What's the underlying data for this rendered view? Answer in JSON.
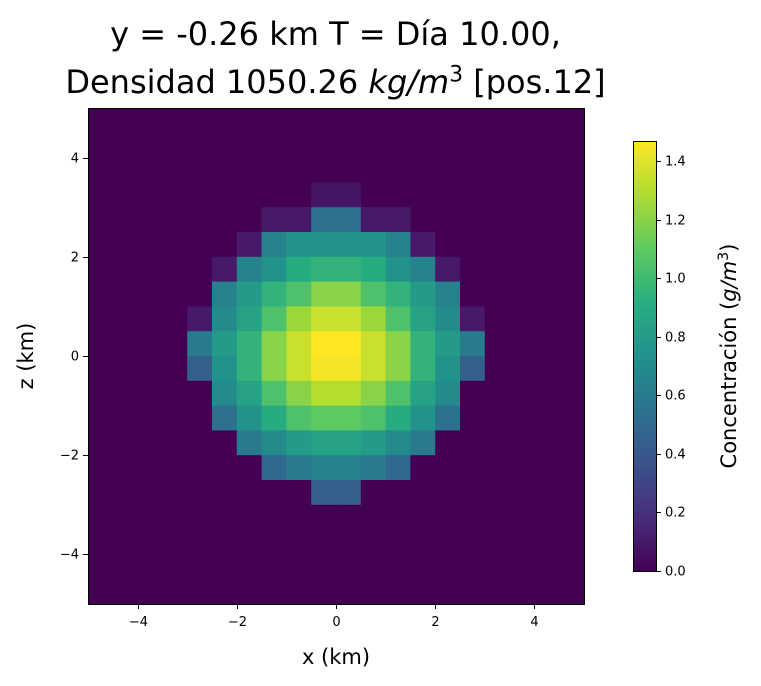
{
  "chart_data": {
    "type": "heatmap",
    "title": "y = -0.26 km  T = Día 10.00,",
    "title_line2": "Densidad 1050.26 ",
    "title_line2_unit": "kg/m",
    "title_line2_exp": "3",
    "title_line2_suffix": " [pos.12]",
    "xlabel": "x (km)",
    "ylabel": "z (km)",
    "colorbar_label": "Concentración (",
    "colorbar_unit": "g/m",
    "colorbar_exp": "3",
    "colorbar_close": ")",
    "colormap": "viridis",
    "xlim": [
      -5,
      5
    ],
    "ylim": [
      -5,
      5
    ],
    "vmin": 0.0,
    "vmax": 1.47,
    "x_ticks": [
      -4,
      -2,
      0,
      2,
      4
    ],
    "x_tick_labels": [
      "−4",
      "−2",
      "0",
      "2",
      "4"
    ],
    "y_ticks": [
      4,
      2,
      0,
      -2,
      -4
    ],
    "y_tick_labels": [
      "4",
      "2",
      "0",
      "−2",
      "−4"
    ],
    "colorbar_ticks": [
      1.4,
      1.2,
      1.0,
      0.8,
      0.6,
      0.4,
      0.2,
      0.0
    ],
    "colorbar_tick_labels": [
      "1.4",
      "1.2",
      "1.0",
      "0.8",
      "0.6",
      "0.4",
      "0.2",
      "0.0"
    ],
    "grid": false,
    "cell_size_km": 0.5,
    "z_rows_top_to_bottom": [
      4.75,
      4.25,
      3.75,
      3.25,
      2.75,
      2.25,
      1.75,
      1.25,
      0.75,
      0.25,
      -0.25,
      -0.75,
      -1.25,
      -1.75,
      -2.25,
      -2.75,
      -3.25,
      -3.75,
      -4.25,
      -4.75
    ],
    "x_columns": [
      -4.75,
      -4.25,
      -3.75,
      -3.25,
      -2.75,
      -2.25,
      -1.75,
      -1.25,
      -0.75,
      -0.25,
      0.25,
      0.75,
      1.25,
      1.75,
      2.25,
      2.75,
      3.25,
      3.75,
      4.25,
      4.75
    ],
    "values": [
      [
        0,
        0,
        0,
        0,
        0,
        0,
        0,
        0,
        0,
        0,
        0,
        0,
        0,
        0,
        0,
        0,
        0,
        0,
        0,
        0
      ],
      [
        0,
        0,
        0,
        0,
        0,
        0,
        0,
        0,
        0,
        0,
        0,
        0,
        0,
        0,
        0,
        0,
        0,
        0,
        0,
        0
      ],
      [
        0,
        0,
        0,
        0,
        0,
        0,
        0,
        0,
        0,
        0,
        0,
        0,
        0,
        0,
        0,
        0,
        0,
        0,
        0,
        0
      ],
      [
        0,
        0,
        0,
        0,
        0,
        0,
        0,
        0,
        0,
        0.08,
        0.08,
        0,
        0,
        0,
        0,
        0,
        0,
        0,
        0,
        0
      ],
      [
        0,
        0,
        0,
        0,
        0,
        0,
        0,
        0.1,
        0.1,
        0.55,
        0.55,
        0.1,
        0.1,
        0,
        0,
        0,
        0,
        0,
        0,
        0
      ],
      [
        0,
        0,
        0,
        0,
        0,
        0,
        0.1,
        0.65,
        0.75,
        0.75,
        0.75,
        0.75,
        0.65,
        0.1,
        0,
        0,
        0,
        0,
        0,
        0
      ],
      [
        0,
        0,
        0,
        0,
        0,
        0.1,
        0.65,
        0.75,
        0.9,
        0.95,
        0.95,
        0.9,
        0.75,
        0.65,
        0.1,
        0,
        0,
        0,
        0,
        0
      ],
      [
        0,
        0,
        0,
        0,
        0,
        0.65,
        0.8,
        0.95,
        1.05,
        1.2,
        1.2,
        1.05,
        0.95,
        0.8,
        0.65,
        0,
        0,
        0,
        0,
        0
      ],
      [
        0,
        0,
        0,
        0,
        0.1,
        0.7,
        0.85,
        1.05,
        1.25,
        1.35,
        1.35,
        1.25,
        1.05,
        0.85,
        0.7,
        0.1,
        0,
        0,
        0,
        0
      ],
      [
        0,
        0,
        0,
        0,
        0.6,
        0.8,
        0.95,
        1.2,
        1.35,
        1.47,
        1.47,
        1.35,
        1.2,
        0.95,
        0.8,
        0.6,
        0,
        0,
        0,
        0
      ],
      [
        0,
        0,
        0,
        0,
        0.45,
        0.75,
        0.95,
        1.2,
        1.35,
        1.45,
        1.45,
        1.35,
        1.2,
        0.95,
        0.75,
        0.45,
        0,
        0,
        0,
        0
      ],
      [
        0,
        0,
        0,
        0,
        0,
        0.7,
        0.85,
        1.05,
        1.2,
        1.3,
        1.3,
        1.2,
        1.05,
        0.85,
        0.7,
        0,
        0,
        0,
        0,
        0
      ],
      [
        0,
        0,
        0,
        0,
        0,
        0.55,
        0.75,
        0.9,
        1.05,
        1.1,
        1.1,
        1.05,
        0.9,
        0.75,
        0.55,
        0,
        0,
        0,
        0,
        0
      ],
      [
        0,
        0,
        0,
        0,
        0,
        0,
        0.6,
        0.7,
        0.8,
        0.85,
        0.85,
        0.8,
        0.7,
        0.6,
        0,
        0,
        0,
        0,
        0,
        0
      ],
      [
        0,
        0,
        0,
        0,
        0,
        0,
        0,
        0.5,
        0.6,
        0.65,
        0.65,
        0.6,
        0.5,
        0,
        0,
        0,
        0,
        0,
        0,
        0
      ],
      [
        0,
        0,
        0,
        0,
        0,
        0,
        0,
        0,
        0,
        0.45,
        0.45,
        0,
        0,
        0,
        0,
        0,
        0,
        0,
        0,
        0
      ],
      [
        0,
        0,
        0,
        0,
        0,
        0,
        0,
        0,
        0,
        0,
        0,
        0,
        0,
        0,
        0,
        0,
        0,
        0,
        0,
        0
      ],
      [
        0,
        0,
        0,
        0,
        0,
        0,
        0,
        0,
        0,
        0,
        0,
        0,
        0,
        0,
        0,
        0,
        0,
        0,
        0,
        0
      ],
      [
        0,
        0,
        0,
        0,
        0,
        0,
        0,
        0,
        0,
        0,
        0,
        0,
        0,
        0,
        0,
        0,
        0,
        0,
        0,
        0
      ],
      [
        0,
        0,
        0,
        0,
        0,
        0,
        0,
        0,
        0,
        0,
        0,
        0,
        0,
        0,
        0,
        0,
        0,
        0,
        0,
        0
      ]
    ]
  }
}
